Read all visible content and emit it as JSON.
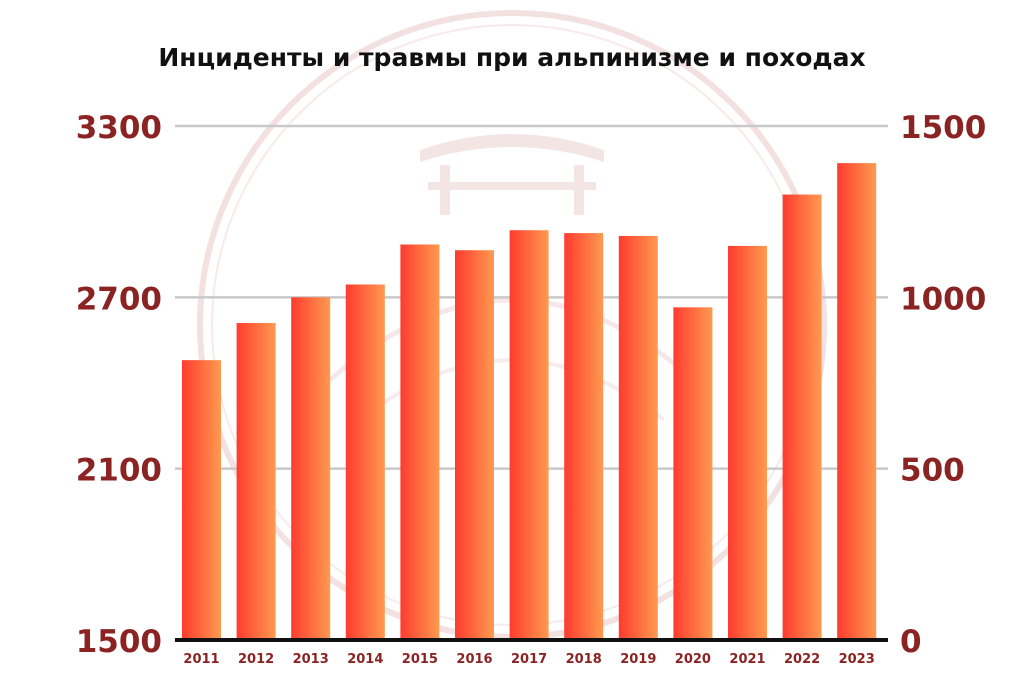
{
  "chart_data": {
    "type": "bar",
    "title": "Инциденты и травмы при альпинизме и походах",
    "categories": [
      "2011",
      "2012",
      "2013",
      "2014",
      "2015",
      "2016",
      "2017",
      "2018",
      "2019",
      "2020",
      "2021",
      "2022",
      "2023"
    ],
    "values": [
      2480,
      2610,
      2700,
      2745,
      2885,
      2865,
      2935,
      2925,
      2915,
      2665,
      2880,
      3060,
      3170
    ],
    "ylim": [
      1500,
      3300
    ],
    "y_ticks_left": [
      "1500",
      "2100",
      "2700",
      "3300"
    ],
    "y_ticks_right": [
      "0",
      "500",
      "1000",
      "1500"
    ],
    "y2lim": [
      0,
      1500
    ],
    "grid": true,
    "legend": "none",
    "colors": {
      "bar_left": "#ff3b2f",
      "bar_right": "#ff9a50",
      "axis_label": "#8c2323",
      "grid": "#c9c9c9",
      "baseline": "#111111",
      "watermark": "#e9c9c9"
    }
  }
}
